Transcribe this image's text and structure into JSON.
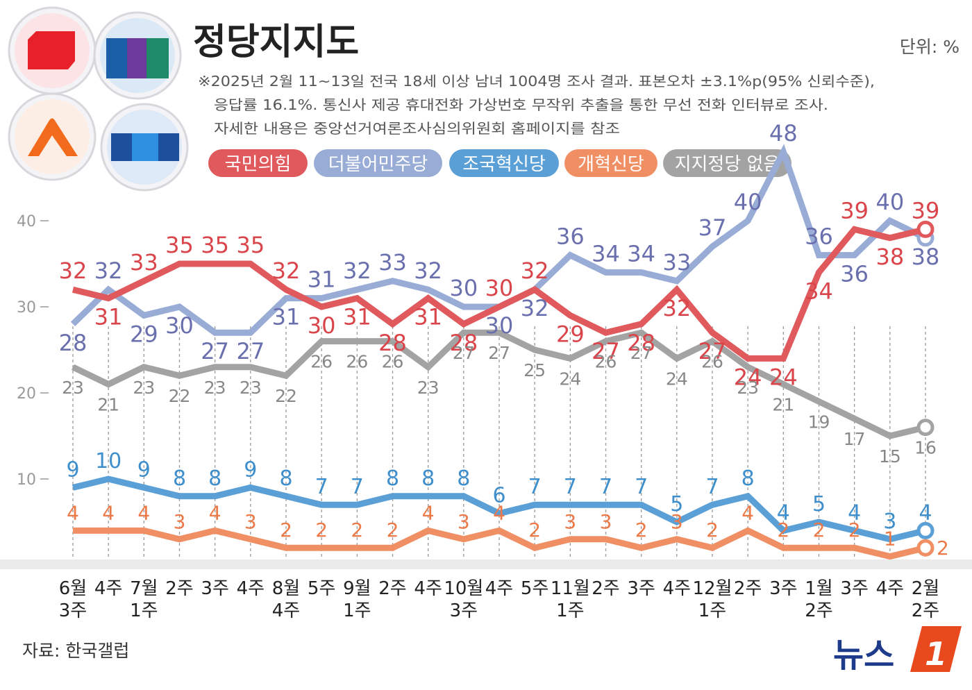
{
  "header": {
    "title": "정당지지도",
    "unit": "단위: %",
    "notes": [
      "※2025년 2월 11~13일 전국 18세 이상 남녀 1004명 조사 결과. 표본오차 ±3.1%p(95% 신뢰수준),",
      "응답률 16.1%. 통신사 제공 휴대전화 가상번호 무작위 추출을 통한 무선 전화 인터뷰로 조사.",
      "자세한 내용은 중앙선거여론조사심의위원회 홈페이지를 참조"
    ]
  },
  "logos": [
    {
      "icon": "ppp-logo-icon",
      "color": "#e8202a"
    },
    {
      "icon": "democratic-logo-icon",
      "color": "#1a5fa8"
    },
    {
      "icon": "reform-logo-icon",
      "color": "#f26b1d"
    },
    {
      "icon": "rebuilding-korea-logo-icon",
      "color": "#1c4f9c"
    }
  ],
  "footer": {
    "source": "자료: 한국갤럽",
    "brand_text": "뉴스",
    "brand_badge": "1"
  },
  "chart_data": {
    "type": "line",
    "categories": [
      "6월 3주",
      "4주",
      "7월 1주",
      "2주",
      "3주",
      "4주",
      "8월 4주",
      "5주",
      "9월 1주",
      "2주",
      "4주",
      "10월 3주",
      "4주",
      "5주",
      "11월 1주",
      "2주",
      "3주",
      "4주",
      "12월 1주",
      "2주",
      "3주",
      "1월 2주",
      "3주",
      "4주",
      "2월 2주"
    ],
    "x_labels": [
      [
        "6월",
        "3주"
      ],
      [
        "4주"
      ],
      [
        "7월",
        "1주"
      ],
      [
        "2주"
      ],
      [
        "3주"
      ],
      [
        "4주"
      ],
      [
        "8월",
        "4주"
      ],
      [
        "5주"
      ],
      [
        "9월",
        "1주"
      ],
      [
        "2주"
      ],
      [
        "4주"
      ],
      [
        "10월",
        "3주"
      ],
      [
        "4주"
      ],
      [
        "5주"
      ],
      [
        "11월",
        "1주"
      ],
      [
        "2주"
      ],
      [
        "3주"
      ],
      [
        "4주"
      ],
      [
        "12월",
        "1주"
      ],
      [
        "2주"
      ],
      [
        "3주"
      ],
      [
        "1월",
        "2주"
      ],
      [
        "3주"
      ],
      [
        "4주"
      ],
      [
        "2월",
        "2주"
      ]
    ],
    "y_ticks": [
      10,
      20,
      30,
      40
    ],
    "series": [
      {
        "name": "국민의힘",
        "color": "#e05a5d",
        "label_color": "#d9454a",
        "values": [
          32,
          31,
          33,
          35,
          35,
          35,
          32,
          30,
          31,
          28,
          31,
          28,
          30,
          32,
          29,
          27,
          28,
          32,
          27,
          24,
          24,
          34,
          39,
          38,
          39
        ]
      },
      {
        "name": "더불어민주당",
        "color": "#98acd6",
        "label_color": "#6a6fae",
        "values": [
          28,
          32,
          29,
          30,
          27,
          27,
          31,
          31,
          32,
          33,
          32,
          30,
          30,
          32,
          36,
          34,
          34,
          33,
          37,
          40,
          48,
          36,
          36,
          40,
          38
        ]
      },
      {
        "name": "조국혁신당",
        "color": "#5a9fd6",
        "label_color": "#3f8fcc",
        "values": [
          9,
          10,
          9,
          8,
          8,
          9,
          8,
          7,
          7,
          8,
          8,
          8,
          6,
          7,
          7,
          7,
          7,
          5,
          7,
          8,
          4,
          5,
          4,
          3,
          4
        ]
      },
      {
        "name": "개혁신당",
        "color": "#f08f63",
        "label_color": "#ec7a48",
        "values": [
          4,
          4,
          4,
          3,
          4,
          3,
          2,
          2,
          2,
          2,
          4,
          3,
          4,
          2,
          3,
          3,
          2,
          3,
          2,
          4,
          2,
          2,
          2,
          1,
          2
        ]
      },
      {
        "name": "지지정당 없음",
        "color": "#a3a3a3",
        "label_color": "#888888",
        "values": [
          23,
          21,
          23,
          22,
          23,
          23,
          22,
          26,
          26,
          26,
          23,
          27,
          27,
          25,
          24,
          26,
          27,
          24,
          26,
          23,
          21,
          19,
          17,
          15,
          16
        ]
      }
    ]
  }
}
